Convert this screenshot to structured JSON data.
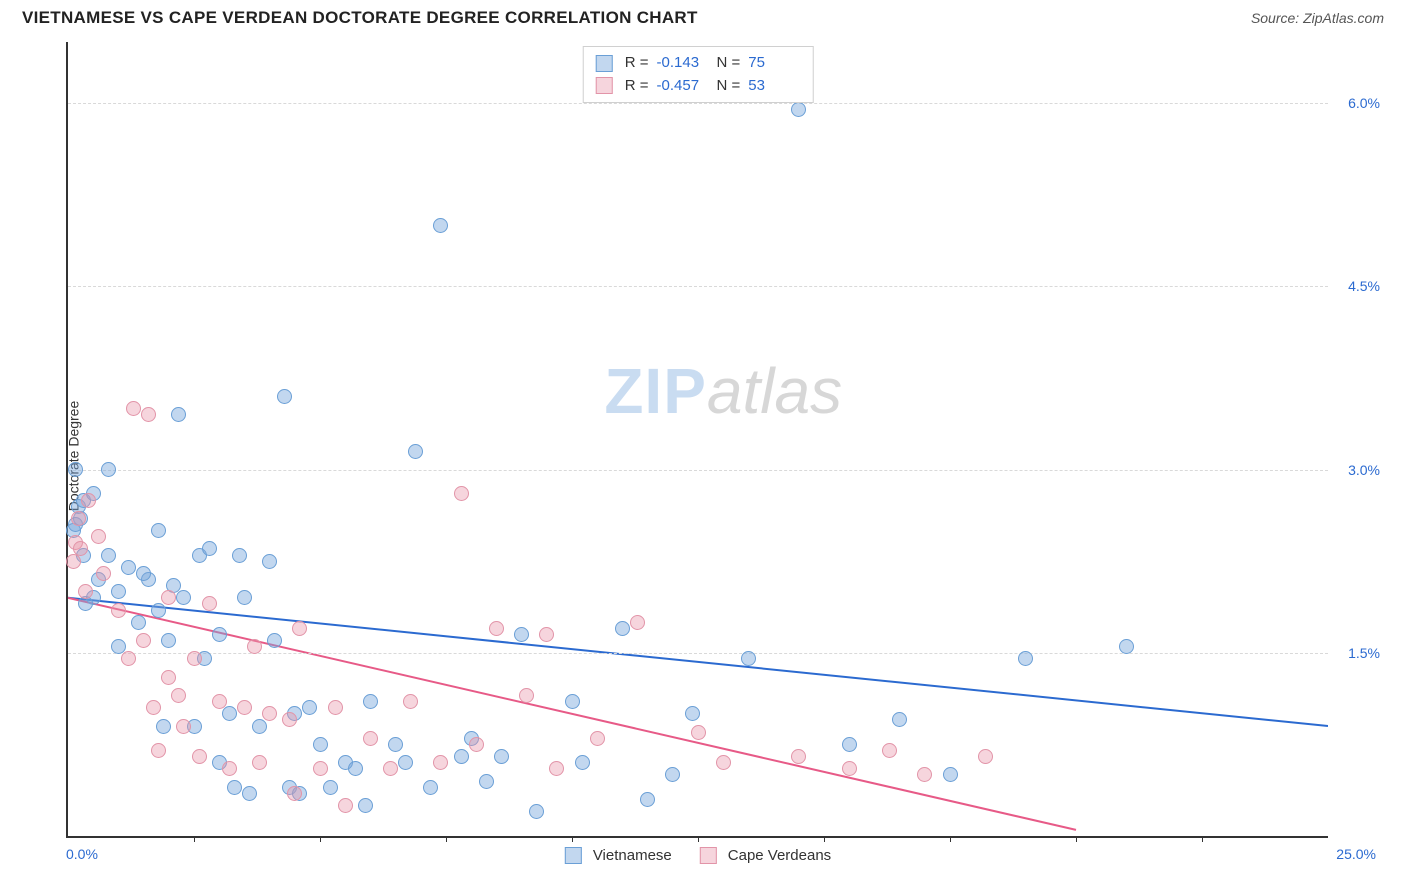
{
  "header": {
    "title": "VIETNAMESE VS CAPE VERDEAN DOCTORATE DEGREE CORRELATION CHART",
    "source_prefix": "Source: ",
    "source_name": "ZipAtlas.com"
  },
  "watermark": {
    "zip": "ZIP",
    "atlas": "atlas"
  },
  "chart": {
    "type": "scatter",
    "ylabel": "Doctorate Degree",
    "xlim": [
      0,
      25
    ],
    "ylim": [
      0,
      6.5
    ],
    "x_axis_labels": {
      "low": "0.0%",
      "high": "25.0%"
    },
    "x_tick_step": 2.5,
    "y_gridlines": [
      {
        "y": 1.5,
        "label": "1.5%"
      },
      {
        "y": 3.0,
        "label": "3.0%"
      },
      {
        "y": 4.5,
        "label": "4.5%"
      },
      {
        "y": 6.0,
        "label": "6.0%"
      }
    ],
    "grid_color": "#d9d9d9",
    "axis_color": "#333333",
    "text_color": "#333333",
    "value_color": "#2b6ad0",
    "background_color": "#ffffff",
    "marker_radius": 7.5,
    "marker_border_width": 1,
    "series": [
      {
        "id": "vietnamese",
        "label": "Vietnamese",
        "fill_color": "rgba(119,166,219,0.45)",
        "stroke_color": "#6a9fd6",
        "line_color": "#2b6ad0",
        "line_width": 2,
        "R": "-0.143",
        "N": "75",
        "trend": {
          "x1": 0,
          "y1": 1.95,
          "x2": 25,
          "y2": 0.9
        },
        "points": [
          [
            0.1,
            2.5
          ],
          [
            0.2,
            2.7
          ],
          [
            0.15,
            3.0
          ],
          [
            0.25,
            2.6
          ],
          [
            0.3,
            2.75
          ],
          [
            0.3,
            2.3
          ],
          [
            0.5,
            2.8
          ],
          [
            0.6,
            2.1
          ],
          [
            0.5,
            1.95
          ],
          [
            0.8,
            2.3
          ],
          [
            0.8,
            3.0
          ],
          [
            1.2,
            2.2
          ],
          [
            1.0,
            2.0
          ],
          [
            1.4,
            1.75
          ],
          [
            1.6,
            2.1
          ],
          [
            1.8,
            1.85
          ],
          [
            1.8,
            2.5
          ],
          [
            2.0,
            1.6
          ],
          [
            2.2,
            3.45
          ],
          [
            2.3,
            1.95
          ],
          [
            2.5,
            0.9
          ],
          [
            2.6,
            2.3
          ],
          [
            2.8,
            2.35
          ],
          [
            3.0,
            1.65
          ],
          [
            3.0,
            0.6
          ],
          [
            3.2,
            1.0
          ],
          [
            3.3,
            0.4
          ],
          [
            3.4,
            2.3
          ],
          [
            3.5,
            1.95
          ],
          [
            3.6,
            0.35
          ],
          [
            4.0,
            2.25
          ],
          [
            4.1,
            1.6
          ],
          [
            4.3,
            3.6
          ],
          [
            4.4,
            0.4
          ],
          [
            4.5,
            1.0
          ],
          [
            4.6,
            0.35
          ],
          [
            4.8,
            1.05
          ],
          [
            5.0,
            0.75
          ],
          [
            5.2,
            0.4
          ],
          [
            5.5,
            0.6
          ],
          [
            5.7,
            0.55
          ],
          [
            5.9,
            0.25
          ],
          [
            6.0,
            1.1
          ],
          [
            6.5,
            0.75
          ],
          [
            6.7,
            0.6
          ],
          [
            6.9,
            3.15
          ],
          [
            7.2,
            0.4
          ],
          [
            7.4,
            5.0
          ],
          [
            7.8,
            0.65
          ],
          [
            8.0,
            0.8
          ],
          [
            8.3,
            0.45
          ],
          [
            8.6,
            0.65
          ],
          [
            9.0,
            1.65
          ],
          [
            9.3,
            0.2
          ],
          [
            10.0,
            1.1
          ],
          [
            10.2,
            0.6
          ],
          [
            11.0,
            1.7
          ],
          [
            11.5,
            0.3
          ],
          [
            12.0,
            0.5
          ],
          [
            12.4,
            1.0
          ],
          [
            13.5,
            1.45
          ],
          [
            14.5,
            5.95
          ],
          [
            15.5,
            0.75
          ],
          [
            16.5,
            0.95
          ],
          [
            17.5,
            0.5
          ],
          [
            19.0,
            1.45
          ],
          [
            21.0,
            1.55
          ],
          [
            0.15,
            2.55
          ],
          [
            0.35,
            1.9
          ],
          [
            1.0,
            1.55
          ],
          [
            1.5,
            2.15
          ],
          [
            1.9,
            0.9
          ],
          [
            2.1,
            2.05
          ],
          [
            2.7,
            1.45
          ],
          [
            3.8,
            0.9
          ]
        ]
      },
      {
        "id": "capeverdeans",
        "label": "Cape Verdeans",
        "fill_color": "rgba(232,150,170,0.4)",
        "stroke_color": "#e294a8",
        "line_color": "#e75a87",
        "line_width": 2,
        "R": "-0.457",
        "N": "53",
        "trend": {
          "x1": 0,
          "y1": 1.95,
          "x2": 20,
          "y2": 0.05
        },
        "points": [
          [
            0.1,
            2.25
          ],
          [
            0.15,
            2.4
          ],
          [
            0.2,
            2.6
          ],
          [
            0.25,
            2.35
          ],
          [
            0.35,
            2.0
          ],
          [
            0.4,
            2.75
          ],
          [
            0.6,
            2.45
          ],
          [
            0.7,
            2.15
          ],
          [
            1.0,
            1.85
          ],
          [
            1.2,
            1.45
          ],
          [
            1.3,
            3.5
          ],
          [
            1.5,
            1.6
          ],
          [
            1.6,
            3.45
          ],
          [
            1.7,
            1.05
          ],
          [
            1.8,
            0.7
          ],
          [
            2.0,
            1.3
          ],
          [
            2.0,
            1.95
          ],
          [
            2.2,
            1.15
          ],
          [
            2.3,
            0.9
          ],
          [
            2.5,
            1.45
          ],
          [
            2.6,
            0.65
          ],
          [
            2.8,
            1.9
          ],
          [
            3.0,
            1.1
          ],
          [
            3.2,
            0.55
          ],
          [
            3.5,
            1.05
          ],
          [
            3.7,
            1.55
          ],
          [
            3.8,
            0.6
          ],
          [
            4.0,
            1.0
          ],
          [
            4.4,
            0.95
          ],
          [
            4.5,
            0.35
          ],
          [
            4.6,
            1.7
          ],
          [
            5.0,
            0.55
          ],
          [
            5.3,
            1.05
          ],
          [
            5.5,
            0.25
          ],
          [
            6.0,
            0.8
          ],
          [
            6.4,
            0.55
          ],
          [
            6.8,
            1.1
          ],
          [
            7.4,
            0.6
          ],
          [
            7.8,
            2.8
          ],
          [
            8.1,
            0.75
          ],
          [
            8.5,
            1.7
          ],
          [
            9.1,
            1.15
          ],
          [
            9.5,
            1.65
          ],
          [
            9.7,
            0.55
          ],
          [
            10.5,
            0.8
          ],
          [
            11.3,
            1.75
          ],
          [
            12.5,
            0.85
          ],
          [
            13.0,
            0.6
          ],
          [
            14.5,
            0.65
          ],
          [
            15.5,
            0.55
          ],
          [
            16.3,
            0.7
          ],
          [
            17.0,
            0.5
          ],
          [
            18.2,
            0.65
          ]
        ]
      }
    ],
    "legend_top": {
      "R_label": "R =",
      "N_label": "N ="
    }
  }
}
